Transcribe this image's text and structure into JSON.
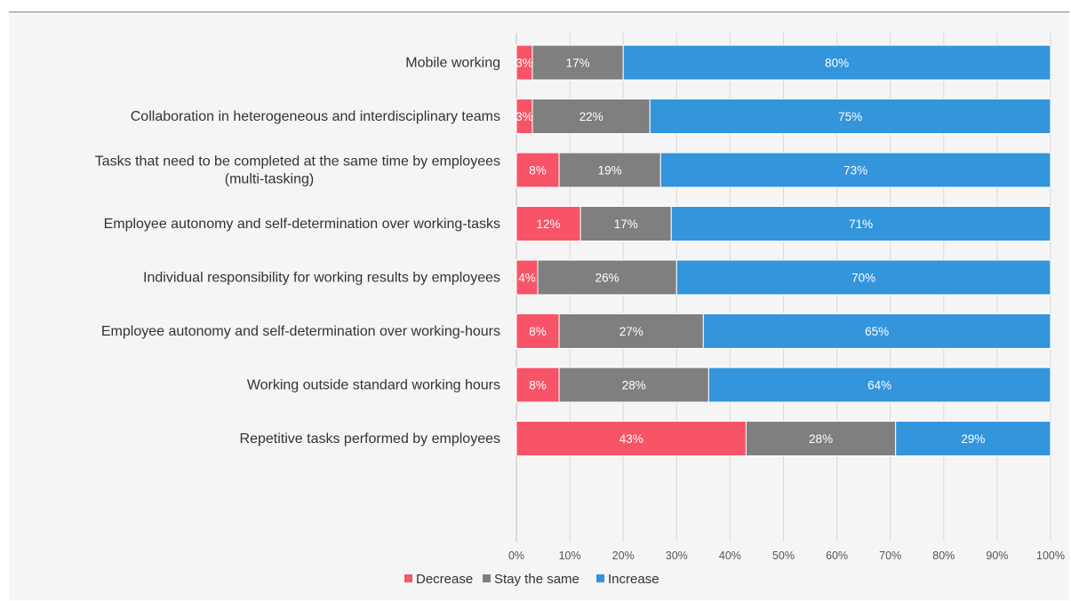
{
  "chart_data": {
    "type": "bar",
    "orientation": "horizontal",
    "stacked": true,
    "categories": [
      [
        "Mobile working"
      ],
      [
        "Collaboration in heterogeneous and interdisciplinary teams"
      ],
      [
        "Tasks that need to be completed at the same time by employees",
        "(multi-tasking)"
      ],
      [
        "Employee autonomy and self-determination over working-tasks"
      ],
      [
        "Individual responsibility for working results by employees"
      ],
      [
        "Employee autonomy and self-determination over working-hours"
      ],
      [
        "Working outside standard working hours"
      ],
      [
        "Repetitive tasks performed by employees"
      ]
    ],
    "series": [
      {
        "name": "Decrease",
        "color": "#f75467",
        "values": [
          3,
          3,
          8,
          12,
          4,
          8,
          8,
          43
        ]
      },
      {
        "name": "Stay the same",
        "color": "#7f7f7f",
        "values": [
          17,
          22,
          19,
          17,
          26,
          27,
          28,
          28
        ]
      },
      {
        "name": "Increase",
        "color": "#3395dc",
        "values": [
          80,
          75,
          73,
          71,
          70,
          65,
          64,
          29
        ]
      }
    ],
    "xlim": [
      0,
      100
    ],
    "x_ticks": [
      "0%",
      "10%",
      "20%",
      "30%",
      "40%",
      "50%",
      "60%",
      "70%",
      "80%",
      "90%",
      "100%"
    ],
    "value_suffix": "%",
    "grid": true,
    "legend_position": "bottom"
  }
}
